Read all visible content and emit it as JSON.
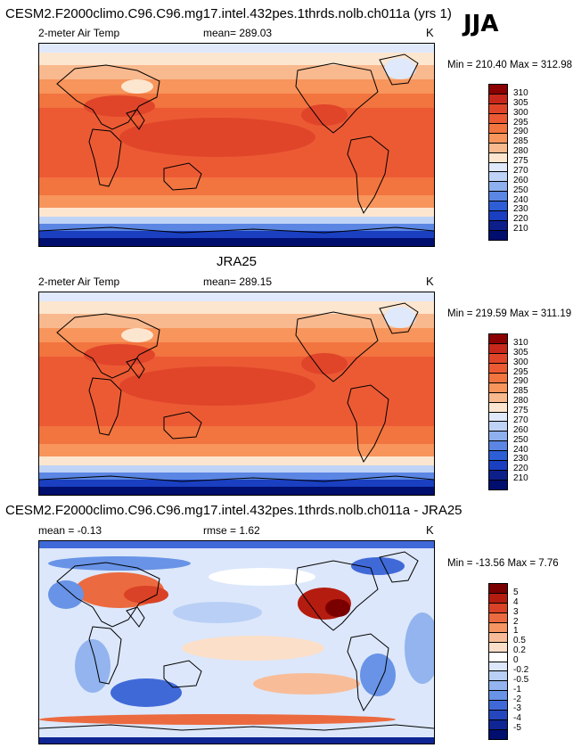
{
  "season": "JJA",
  "panels": [
    {
      "title": "CESM2.F2000climo.C96.C96.mg17.intel.432pes.1thrds.nolb.ch011a (yrs 1)",
      "variable": "2-meter Air Temp",
      "stat": "mean= 289.03",
      "units": "K",
      "minmax": "Min = 210.40 Max = 312.98",
      "palette": "abs",
      "colorbar_labels": [
        "310",
        "305",
        "300",
        "295",
        "290",
        "285",
        "280",
        "275",
        "270",
        "260",
        "250",
        "240",
        "230",
        "220",
        "210"
      ]
    },
    {
      "title": "JRA25",
      "variable": "2-meter Air Temp",
      "stat": "mean= 289.15",
      "units": "K",
      "minmax": "Min = 219.59 Max = 311.19",
      "palette": "abs",
      "colorbar_labels": [
        "310",
        "305",
        "300",
        "295",
        "290",
        "285",
        "280",
        "275",
        "270",
        "260",
        "250",
        "240",
        "230",
        "220",
        "210"
      ]
    },
    {
      "title": "CESM2.F2000climo.C96.C96.mg17.intel.432pes.1thrds.nolb.ch011a - JRA25",
      "stat": "mean =  -0.13",
      "stat2": "rmse =   1.62",
      "units": "K",
      "minmax": "Min = -13.56 Max =   7.76",
      "palette": "diff",
      "colorbar_labels": [
        "5",
        "4",
        "3",
        "2",
        "1",
        "0.5",
        "0.2",
        "0",
        "-0.2",
        "-0.5",
        "-1",
        "-2",
        "-3",
        "-4",
        "-5"
      ]
    }
  ],
  "colors": {
    "abs": [
      "#8b0000",
      "#c8281c",
      "#e0452a",
      "#ec5a34",
      "#f2743f",
      "#f7955c",
      "#f9b98e",
      "#fde6cf",
      "#dfe9fb",
      "#bfd3f6",
      "#8eb0ee",
      "#5b86e3",
      "#2e5ed6",
      "#1a3fc0",
      "#0d1f8a",
      "#000e6e"
    ],
    "diff": [
      "#7a0000",
      "#b51c10",
      "#d94226",
      "#ec6a3f",
      "#f49562",
      "#f8bd98",
      "#fbdfc8",
      "#ffffff",
      "#dce7fb",
      "#b9cff5",
      "#93b4ee",
      "#6893e6",
      "#4069d8",
      "#2447bd",
      "#0e2593",
      "#000e6e"
    ]
  }
}
